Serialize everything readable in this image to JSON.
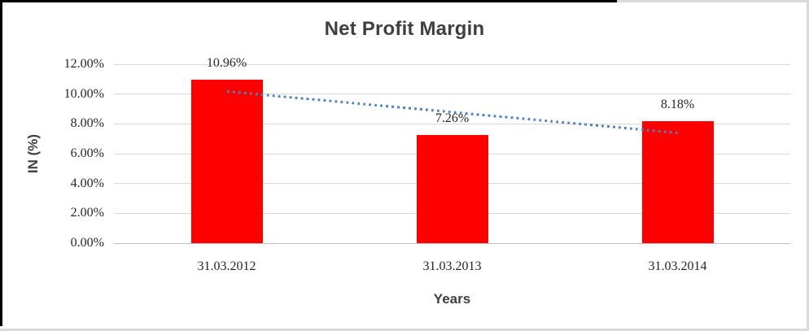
{
  "chart_data": {
    "type": "bar",
    "title": "Net Profit Margin",
    "xlabel": "Years",
    "ylabel": "IN (%)",
    "categories": [
      "31.03.2012",
      "31.03.2013",
      "31.03.2014"
    ],
    "values": [
      10.96,
      7.26,
      8.18
    ],
    "data_labels": [
      "10.96%",
      "7.26%",
      "8.18%"
    ],
    "ylim": [
      0,
      12
    ],
    "ytick_step": 2,
    "ytick_labels": [
      "0.00%",
      "2.00%",
      "4.00%",
      "6.00%",
      "8.00%",
      "10.00%",
      "12.00%"
    ],
    "grid": true,
    "legend": "none",
    "bar_color": "#ff0000",
    "gridline_color": "#d9d9d9",
    "trendline": {
      "type": "linear",
      "style": "dotted",
      "color": "#4f81bd"
    }
  }
}
